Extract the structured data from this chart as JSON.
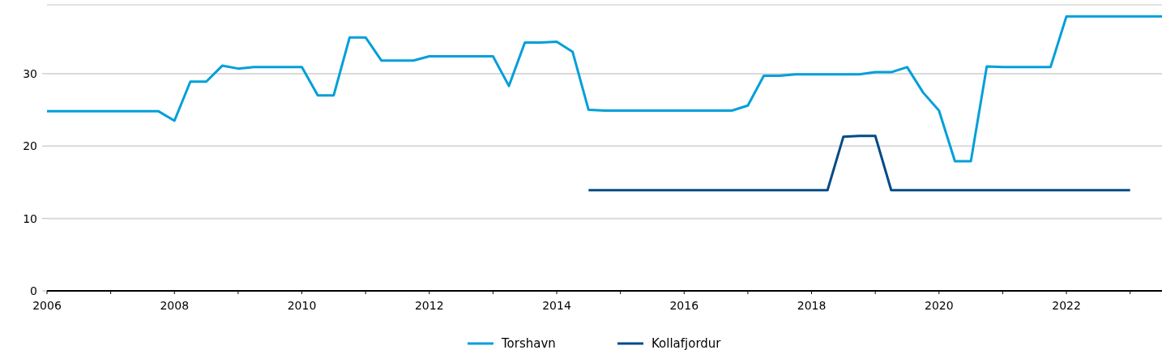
{
  "chart_data": {
    "type": "line",
    "xlim": [
      2006,
      2023.5
    ],
    "xticks": [
      2006,
      2008,
      2010,
      2012,
      2014,
      2016,
      2018,
      2020,
      2022
    ],
    "ylim": [
      0,
      39.5
    ],
    "yticks": [
      0,
      10,
      20,
      30
    ],
    "grid": "y",
    "legend": "bottom",
    "marker": "none",
    "line_style": "solid",
    "series": [
      {
        "name": "Torshavn",
        "color": "#009fda",
        "x": [
          2006,
          2007.75,
          2008,
          2008.25,
          2008.5,
          2008.75,
          2009,
          2009.25,
          2010,
          2010.25,
          2010.5,
          2010.75,
          2011,
          2011.25,
          2011.75,
          2012,
          2013,
          2013.25,
          2013.5,
          2013.75,
          2014,
          2014.25,
          2014.5,
          2014.75,
          2016.75,
          2017,
          2017.25,
          2017.5,
          2017.75,
          2018.75,
          2019,
          2019.25,
          2019.5,
          2019.75,
          2020,
          2020.25,
          2020.5,
          2020.75,
          2021,
          2021.75,
          2022,
          2023.5
        ],
        "values": [
          24.8,
          24.8,
          23.5,
          28.9,
          28.9,
          31.1,
          30.7,
          30.9,
          30.9,
          27.0,
          27.0,
          35.0,
          35.0,
          31.8,
          31.8,
          32.4,
          32.4,
          28.3,
          34.3,
          34.3,
          34.4,
          33.0,
          25.0,
          24.9,
          24.9,
          25.6,
          29.7,
          29.7,
          29.9,
          29.9,
          30.2,
          30.2,
          30.9,
          27.4,
          24.9,
          17.9,
          17.9,
          31.0,
          30.9,
          30.9,
          37.9,
          37.9
        ]
      },
      {
        "name": "Kollafjordur",
        "color": "#004b87",
        "x": [
          2014.5,
          2018.25,
          2018.5,
          2018.75,
          2019,
          2019.25,
          2023
        ],
        "values": [
          13.9,
          13.9,
          21.3,
          21.4,
          21.4,
          13.9,
          13.9
        ]
      }
    ]
  }
}
